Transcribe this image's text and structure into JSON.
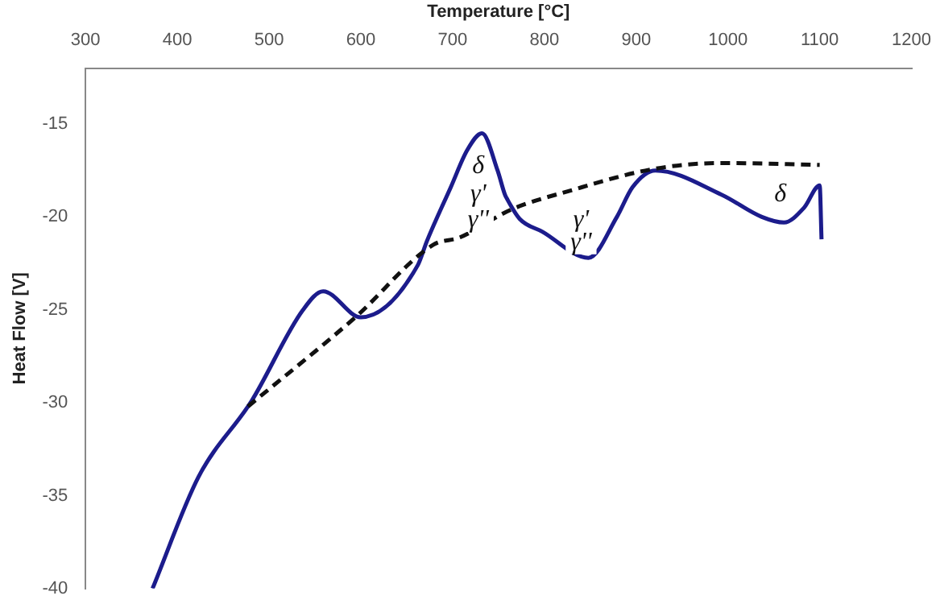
{
  "chart_data": {
    "type": "line",
    "xlabel": "Temperature [°C]",
    "ylabel": "Heat Flow [V]",
    "xlim": [
      300,
      1200
    ],
    "xticks": [
      300,
      400,
      500,
      600,
      700,
      800,
      900,
      1000,
      1100,
      1200
    ],
    "ylim": [
      -40,
      -12
    ],
    "yticks": [
      -40,
      -35,
      -30,
      -25,
      -20,
      -15
    ],
    "grid": false,
    "legend": false,
    "marker": "none",
    "series": [
      {
        "color": "#1c1c8c",
        "line_style": "solid",
        "x": [
          373,
          423,
          481,
          537,
          559,
          600,
          662,
          672,
          698,
          716,
          732,
          749,
          757,
          759,
          773,
          798,
          848,
          879,
          896,
          921,
          993,
          1037,
          1061,
          1083,
          1100,
          1102
        ],
        "values": [
          -40,
          -34,
          -29.9,
          -25,
          -24,
          -25.4,
          -22.6,
          -21.3,
          -18.4,
          -16.4,
          -15.5,
          -17.5,
          -18.8,
          -19,
          -20.1,
          -20.8,
          -22.2,
          -20,
          -18.4,
          -17.5,
          -18.8,
          -20,
          -20.3,
          -19.5,
          -18.3,
          -21.2
        ]
      },
      {
        "color": "#111111",
        "line_style": "dashed",
        "x": [
          477,
          594,
          679,
          708,
          764,
          827,
          921,
          993,
          1100
        ],
        "values": [
          -30.2,
          -25.4,
          -21.5,
          -21.1,
          -19.6,
          -18.6,
          -17.4,
          -17.1,
          -17.2
        ]
      }
    ],
    "annotations": [
      {
        "text": "δ",
        "x": 728,
        "y": -17.3
      },
      {
        "text": "γ'",
        "x": 728,
        "y": -18.8
      },
      {
        "text": "γ''",
        "x": 728,
        "y": -20.2
      },
      {
        "text": "γ'",
        "x": 840,
        "y": -20.2
      },
      {
        "text": "γ''",
        "x": 840,
        "y": -21.4
      },
      {
        "text": "δ",
        "x": 1057,
        "y": -18.8
      }
    ]
  }
}
